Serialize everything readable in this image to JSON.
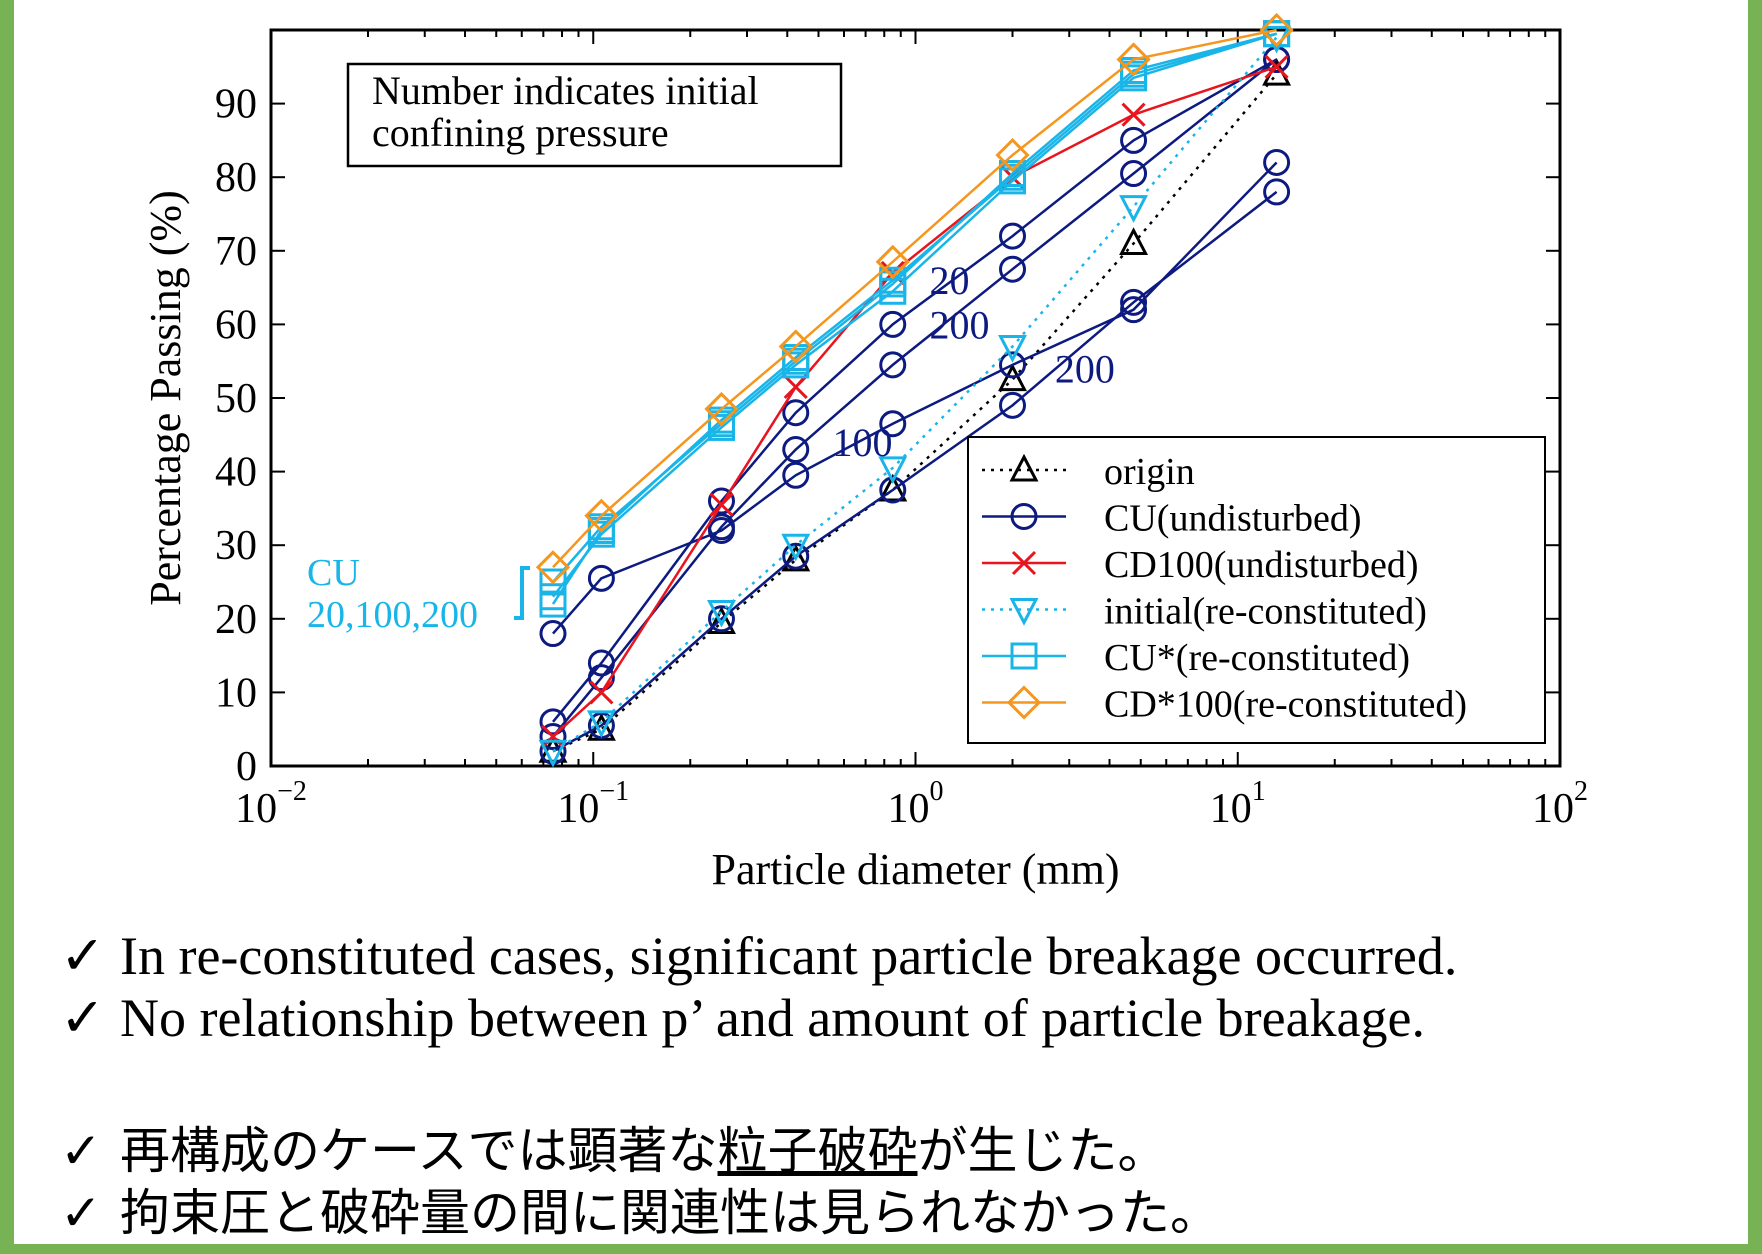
{
  "chart_data": {
    "type": "line",
    "title": "",
    "xlabel": "Particle diameter (mm)",
    "ylabel": "Percentage Passing (%)",
    "x_scale": "log",
    "xlim": [
      0.01,
      100
    ],
    "ylim": [
      0,
      100
    ],
    "x_ticks": [
      {
        "value": 0.01,
        "base": "10",
        "exp": "−2"
      },
      {
        "value": 0.1,
        "base": "10",
        "exp": "−1"
      },
      {
        "value": 1,
        "base": "10",
        "exp": "0"
      },
      {
        "value": 10,
        "base": "10",
        "exp": "1"
      },
      {
        "value": 100,
        "base": "10",
        "exp": "2"
      }
    ],
    "y_ticks": [
      0,
      10,
      20,
      30,
      40,
      50,
      60,
      70,
      80,
      90
    ],
    "grid": false,
    "legend_position": "bottom-right",
    "note_box": [
      "Number indicates initial",
      "confining pressure"
    ],
    "annotations": [
      {
        "text": "20",
        "x": 1.0,
        "y": 66,
        "color": "#0d1a80"
      },
      {
        "text": "200",
        "x": 1.0,
        "y": 60,
        "color": "#0d1a80"
      },
      {
        "text": "100",
        "x": 0.5,
        "y": 44,
        "color": "#0d1a80"
      },
      {
        "text": "200",
        "x": 2.45,
        "y": 54,
        "color": "#0d1a80"
      }
    ],
    "bracket_label": {
      "lines": [
        "CU",
        "20,100,200"
      ],
      "color": "#19b5e8"
    },
    "series": [
      {
        "name": "origin",
        "legend": true,
        "color": "#000000",
        "marker": "triangle",
        "linestyle": "dotted",
        "x": [
          0.075,
          0.106,
          0.25,
          0.425,
          0.85,
          2.0,
          4.75,
          13.2
        ],
        "y": [
          2,
          5,
          19.5,
          28,
          37.5,
          52.5,
          71,
          94
        ]
      },
      {
        "name": "CU(undisturbed)",
        "legend": true,
        "color": "#0d1a80",
        "marker": "circle",
        "linestyle": "solid",
        "x": [
          0.075,
          0.106,
          0.25,
          0.425,
          0.85,
          2.0,
          4.75,
          13.2
        ],
        "y": [
          18,
          25.5,
          32,
          39.5,
          46.5,
          54.5,
          62,
          82
        ]
      },
      {
        "name": "",
        "legend": false,
        "color": "#0d1a80",
        "marker": "circle",
        "linestyle": "solid",
        "x": [
          0.075,
          0.106,
          0.25,
          0.425,
          0.85,
          2.0,
          4.75,
          13.2
        ],
        "y": [
          6,
          14,
          36,
          48,
          60,
          72,
          85,
          96
        ]
      },
      {
        "name": "",
        "legend": false,
        "color": "#0d1a80",
        "marker": "circle",
        "linestyle": "solid",
        "x": [
          0.075,
          0.106,
          0.25,
          0.425,
          0.85,
          2.0,
          4.75,
          13.2
        ],
        "y": [
          4,
          12,
          32.5,
          43,
          54.5,
          67.5,
          80.5,
          96
        ]
      },
      {
        "name": "",
        "legend": false,
        "color": "#0d1a80",
        "marker": "circle",
        "linestyle": "solid",
        "x": [
          0.075,
          0.106,
          0.25,
          0.425,
          0.85,
          2.0,
          4.75,
          13.2
        ],
        "y": [
          2,
          5.5,
          20,
          28.5,
          37.5,
          49,
          63,
          78
        ]
      },
      {
        "name": "CD100(undisturbed)",
        "legend": true,
        "color": "#e8141e",
        "marker": "x",
        "linestyle": "solid",
        "x": [
          0.075,
          0.106,
          0.25,
          0.425,
          0.85,
          2.0,
          4.75,
          13.2
        ],
        "y": [
          4,
          10,
          35.5,
          51.5,
          67,
          80,
          88.5,
          95
        ]
      },
      {
        "name": "initial(re-constituted)",
        "legend": true,
        "color": "#19b5e8",
        "marker": "triangle-down",
        "linestyle": "dotted",
        "x": [
          0.075,
          0.106,
          0.25,
          0.425,
          0.85,
          2.0,
          4.75,
          13.2
        ],
        "y": [
          2,
          6,
          21,
          30,
          40.5,
          57,
          76,
          99
        ]
      },
      {
        "name": "CU*(re-constituted)",
        "legend": true,
        "color": "#19b5e8",
        "marker": "square",
        "linestyle": "solid",
        "x": [
          0.075,
          0.106,
          0.25,
          0.425,
          0.85,
          2.0,
          4.75,
          13.2
        ],
        "y": [
          25,
          32.5,
          46.5,
          55,
          65.5,
          80.5,
          94.5,
          99.5
        ]
      },
      {
        "name": "",
        "legend": false,
        "color": "#19b5e8",
        "marker": "square",
        "linestyle": "solid",
        "x": [
          0.075,
          0.106,
          0.25,
          0.425,
          0.85,
          2.0,
          4.75,
          13.2
        ],
        "y": [
          23,
          31.5,
          46,
          54.5,
          64.5,
          79.5,
          93.5,
          99.5
        ]
      },
      {
        "name": "",
        "legend": false,
        "color": "#19b5e8",
        "marker": "square",
        "linestyle": "solid",
        "x": [
          0.075,
          0.106,
          0.25,
          0.425,
          0.85,
          2.0,
          4.75,
          13.2
        ],
        "y": [
          22,
          32,
          47,
          55.5,
          66,
          80,
          94,
          99.5
        ]
      },
      {
        "name": "CD*100(re-constituted)",
        "legend": true,
        "color": "#f5961e",
        "marker": "diamond",
        "linestyle": "solid",
        "x": [
          0.075,
          0.106,
          0.25,
          0.425,
          0.85,
          2.0,
          4.75,
          13.2
        ],
        "y": [
          27,
          34,
          48.5,
          57,
          68.5,
          83,
          96,
          100
        ]
      }
    ]
  },
  "bullets_en": [
    "In re-constituted cases, significant particle breakage occurred.",
    "No relationship between p’ and amount of particle breakage."
  ],
  "bullet_mark": "✓",
  "bullets_ja": [
    {
      "before": "再構成のケースでは顕著な",
      "underlined": "粒子破砕",
      "after": "が生じた。"
    },
    {
      "before": "拘束圧と破砕量の間に関連性は見られなかった。",
      "underlined": "",
      "after": ""
    }
  ]
}
